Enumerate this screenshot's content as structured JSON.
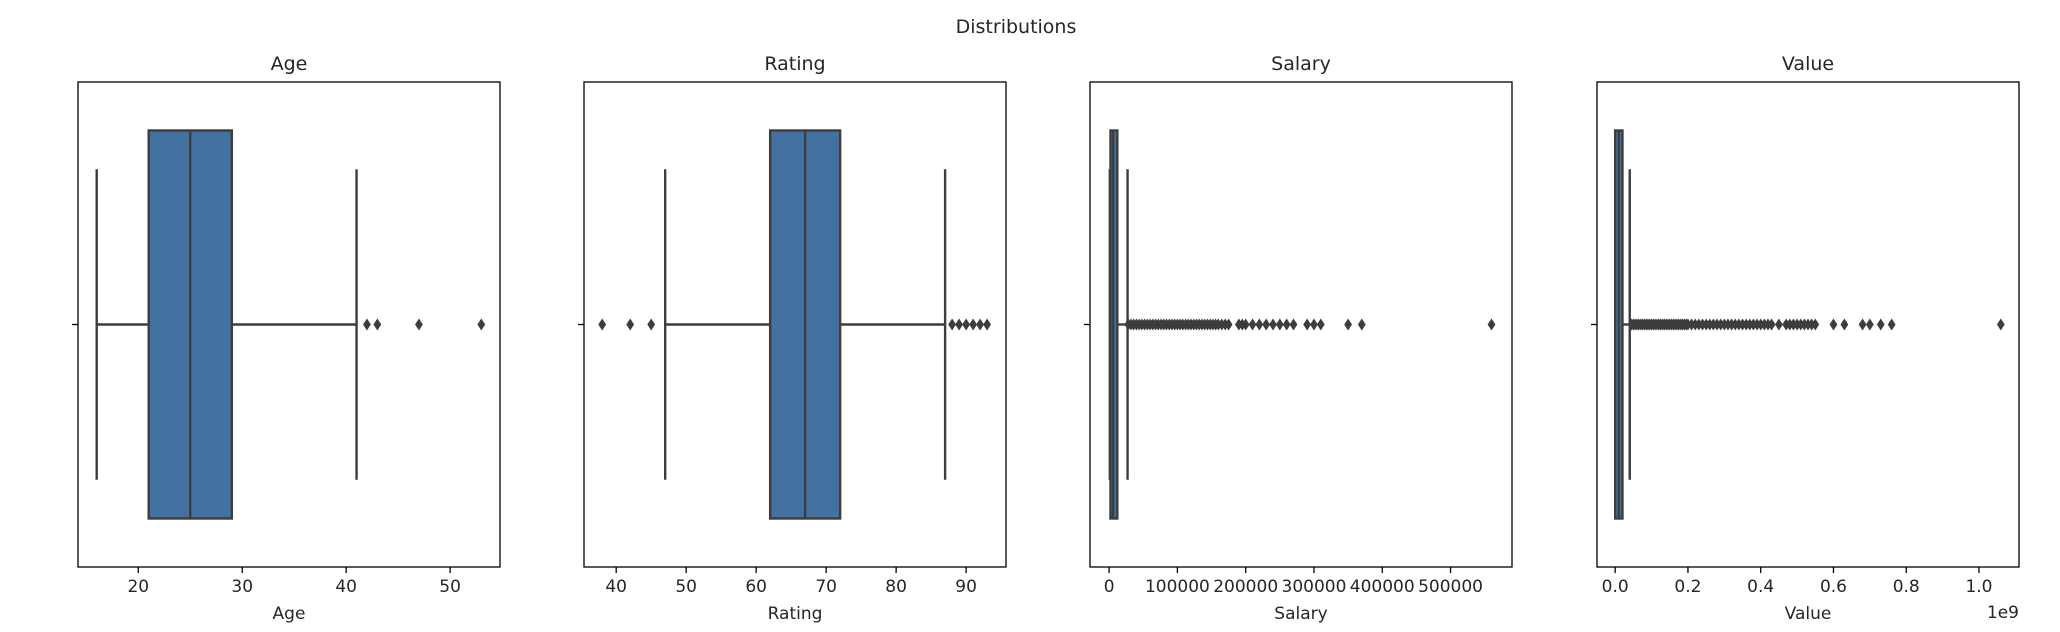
{
  "title": "Distributions",
  "colors": {
    "box_fill": "#4472a0",
    "line": "#3d3d3d",
    "outlier": "#3d3d3d",
    "frame": "#000000"
  },
  "chart_data": [
    {
      "type": "box",
      "title": "Age",
      "xlabel": "Age",
      "ylabel": "",
      "xlim": [
        14.2,
        54.8
      ],
      "ticks": [
        20,
        30,
        40,
        50
      ],
      "tick_labels": [
        "20",
        "30",
        "40",
        "50"
      ],
      "offset_label": "",
      "stats": {
        "whisker_low": 16,
        "q1": 21,
        "median": 25,
        "q3": 29,
        "whisker_high": 41
      },
      "outliers": [
        42,
        43,
        47,
        53
      ]
    },
    {
      "type": "box",
      "title": "Rating",
      "xlabel": "Rating",
      "ylabel": "",
      "xlim": [
        35.4,
        95.7
      ],
      "ticks": [
        40,
        50,
        60,
        70,
        80,
        90
      ],
      "tick_labels": [
        "40",
        "50",
        "60",
        "70",
        "80",
        "90"
      ],
      "offset_label": "",
      "stats": {
        "whisker_low": 47,
        "q1": 62,
        "median": 67,
        "q3": 72,
        "whisker_high": 87
      },
      "outliers": [
        38,
        42,
        45,
        88,
        89,
        90,
        91,
        92,
        93
      ]
    },
    {
      "type": "box",
      "title": "Salary",
      "xlabel": "Salary",
      "ylabel": "",
      "xlim": [
        -28000,
        590000
      ],
      "ticks": [
        0,
        100000,
        200000,
        300000,
        400000,
        500000
      ],
      "tick_labels": [
        "0",
        "100000",
        "200000",
        "300000",
        "400000",
        "500000"
      ],
      "offset_label": "",
      "stats": {
        "whisker_low": 1000,
        "q1": 2000,
        "median": 6000,
        "q3": 12000,
        "whisker_high": 27000
      },
      "outliers": [
        28000,
        32000,
        36000,
        40000,
        44000,
        48000,
        52000,
        56000,
        60000,
        64000,
        68000,
        72000,
        76000,
        80000,
        84000,
        88000,
        92000,
        96000,
        100000,
        104000,
        108000,
        112000,
        116000,
        120000,
        124000,
        128000,
        132000,
        136000,
        140000,
        144000,
        148000,
        152000,
        156000,
        160000,
        165000,
        170000,
        175000,
        190000,
        195000,
        200000,
        210000,
        220000,
        230000,
        240000,
        250000,
        260000,
        270000,
        290000,
        300000,
        310000,
        350000,
        370000,
        560000
      ]
    },
    {
      "type": "box",
      "title": "Value",
      "xlabel": "Value",
      "ylabel": "",
      "xlim": [
        -0.05,
        1.11
      ],
      "ticks": [
        0.0,
        0.2,
        0.4,
        0.6,
        0.8,
        1.0
      ],
      "tick_labels": [
        "0.0",
        "0.2",
        "0.4",
        "0.6",
        "0.8",
        "1.0"
      ],
      "offset_label": "1e9",
      "stats": {
        "whisker_low": 0.0,
        "q1": 0.0,
        "median": 0.01,
        "q3": 0.02,
        "whisker_high": 0.04
      },
      "outliers": [
        0.045,
        0.05,
        0.055,
        0.06,
        0.065,
        0.07,
        0.075,
        0.08,
        0.085,
        0.09,
        0.095,
        0.1,
        0.105,
        0.11,
        0.115,
        0.12,
        0.125,
        0.13,
        0.135,
        0.14,
        0.145,
        0.15,
        0.155,
        0.16,
        0.165,
        0.17,
        0.175,
        0.18,
        0.185,
        0.19,
        0.195,
        0.2,
        0.21,
        0.22,
        0.23,
        0.24,
        0.25,
        0.26,
        0.27,
        0.28,
        0.29,
        0.3,
        0.31,
        0.32,
        0.33,
        0.34,
        0.35,
        0.36,
        0.37,
        0.38,
        0.39,
        0.4,
        0.41,
        0.42,
        0.43,
        0.45,
        0.47,
        0.48,
        0.49,
        0.5,
        0.51,
        0.52,
        0.53,
        0.54,
        0.55,
        0.6,
        0.63,
        0.68,
        0.7,
        0.73,
        0.76,
        1.06
      ]
    }
  ]
}
